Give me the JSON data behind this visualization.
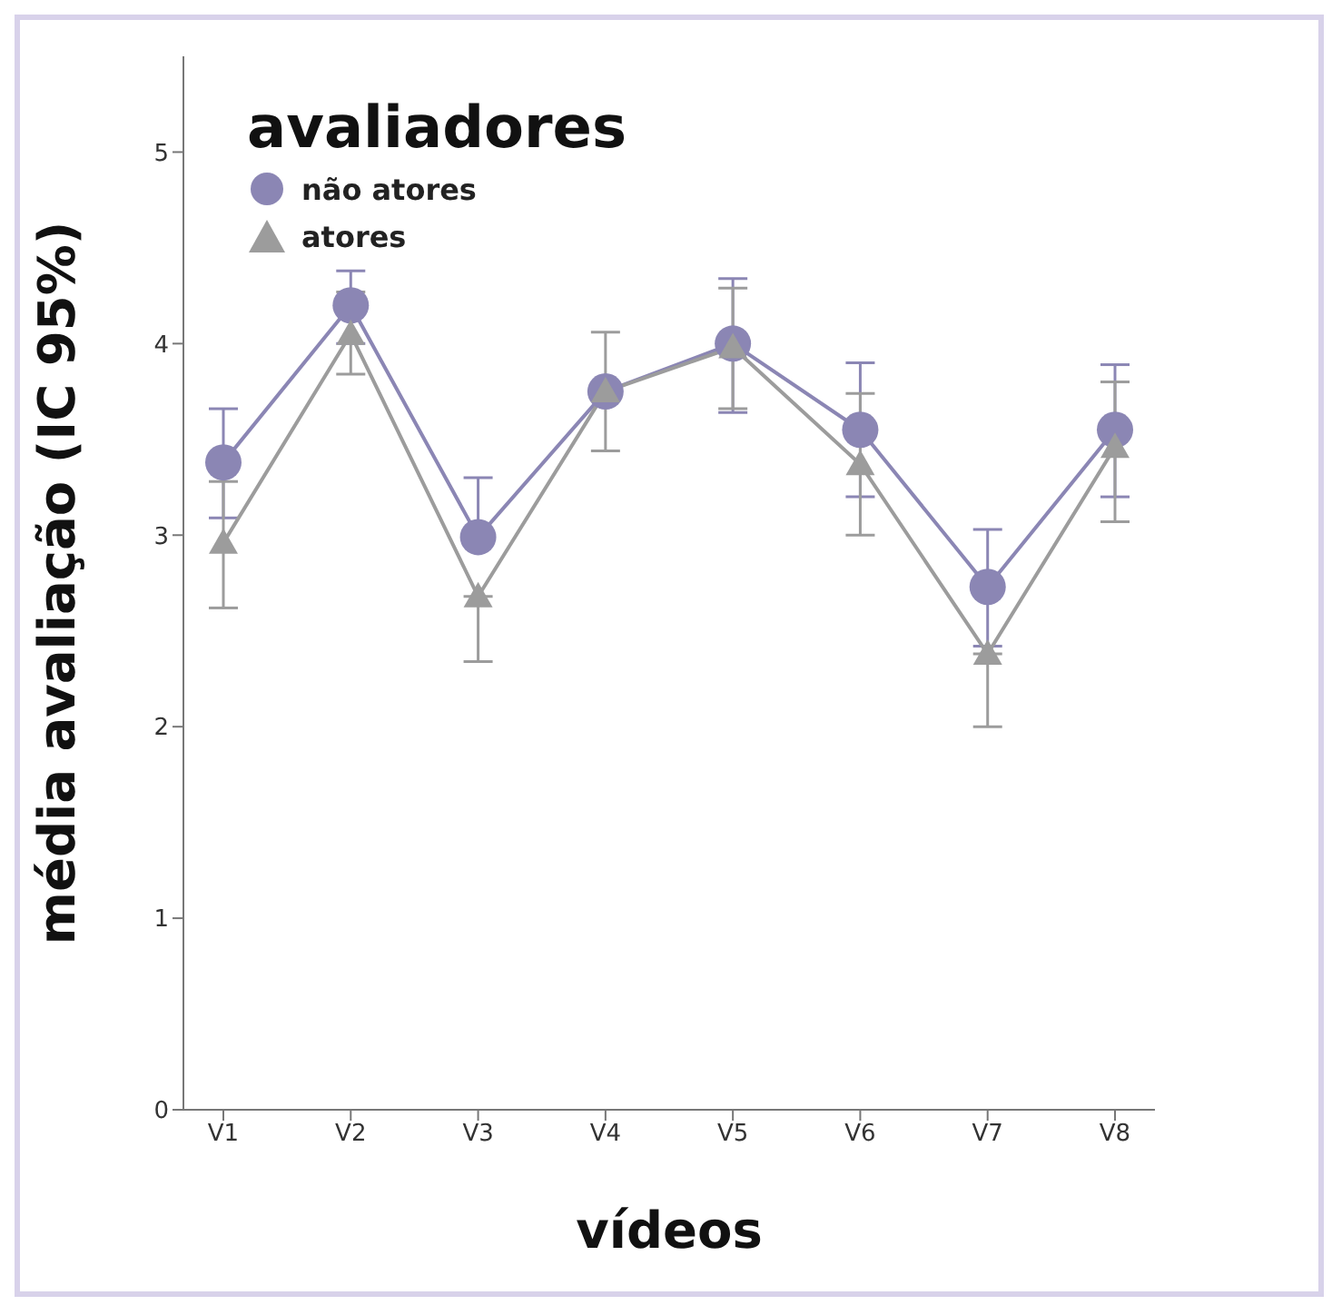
{
  "chart_data": {
    "type": "line",
    "xlabel": "vídeos",
    "ylabel": "média  avaliação (IC 95%)",
    "legend_title": "avaliadores",
    "legend": "top left",
    "grid": false,
    "categories": [
      "V1",
      "V2",
      "V3",
      "V4",
      "V5",
      "V6",
      "V7",
      "V8"
    ],
    "ylim": [
      0,
      5.5
    ],
    "yticks": [
      0,
      1,
      2,
      3,
      4,
      5
    ],
    "series": [
      {
        "name": "não atores",
        "color": "#8b86b4",
        "marker": "circle",
        "values": [
          3.38,
          4.2,
          2.99,
          3.75,
          4.0,
          3.55,
          2.73,
          3.55
        ],
        "errors": [
          [
            3.09,
            3.66
          ],
          [
            4.0,
            4.38
          ],
          [
            2.99,
            3.3
          ],
          null,
          [
            3.64,
            4.34
          ],
          [
            3.2,
            3.9
          ],
          [
            2.42,
            3.03
          ],
          [
            3.2,
            3.89
          ]
        ]
      },
      {
        "name": "atores",
        "color": "#9c9c9c",
        "marker": "triangle",
        "values": [
          2.96,
          4.05,
          2.68,
          3.75,
          3.98,
          3.37,
          2.38,
          3.46
        ],
        "errors": [
          [
            2.62,
            3.28
          ],
          [
            3.84,
            4.27
          ],
          [
            2.34,
            2.68
          ],
          [
            3.44,
            4.06
          ],
          [
            3.66,
            4.29
          ],
          [
            3.0,
            3.74
          ],
          [
            2.0,
            2.38
          ],
          [
            3.07,
            3.8
          ]
        ]
      }
    ]
  }
}
